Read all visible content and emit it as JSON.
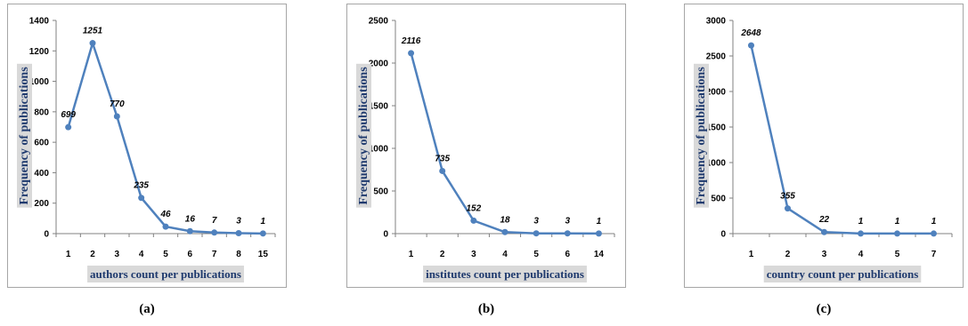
{
  "colors": {
    "line": "#4f81bd",
    "label_text": "#1f3a6e",
    "label_bg": "#d9d9d9",
    "border": "#a6a6a6"
  },
  "chart_data": [
    {
      "type": "line",
      "caption": "(a)",
      "xlabel": "authors count per publications",
      "ylabel": "Frequency of publications",
      "categories": [
        "1",
        "2",
        "3",
        "4",
        "5",
        "6",
        "7",
        "8",
        "15"
      ],
      "values": [
        699,
        1251,
        770,
        235,
        46,
        16,
        7,
        3,
        1
      ],
      "ylim": [
        0,
        1400
      ],
      "yticks": [
        0,
        200,
        400,
        600,
        800,
        1000,
        1200,
        1400
      ],
      "grid": false,
      "legend": "none"
    },
    {
      "type": "line",
      "caption": "(b)",
      "xlabel": "institutes count per publications",
      "ylabel": "Frequency of publications",
      "categories": [
        "1",
        "2",
        "3",
        "4",
        "5",
        "6",
        "14"
      ],
      "values": [
        2116,
        735,
        152,
        18,
        3,
        3,
        1
      ],
      "ylim": [
        0,
        2500
      ],
      "yticks": [
        0,
        500,
        1000,
        1500,
        2000,
        2500
      ],
      "grid": false,
      "legend": "none"
    },
    {
      "type": "line",
      "caption": "(c)",
      "xlabel": "country count per publications",
      "ylabel": "Frequency of publications",
      "categories": [
        "1",
        "2",
        "3",
        "4",
        "5",
        "7"
      ],
      "values": [
        2648,
        355,
        22,
        1,
        1,
        1
      ],
      "ylim": [
        0,
        3000
      ],
      "yticks": [
        0,
        500,
        1000,
        1500,
        2000,
        2500,
        3000
      ],
      "grid": false,
      "legend": "none"
    }
  ]
}
